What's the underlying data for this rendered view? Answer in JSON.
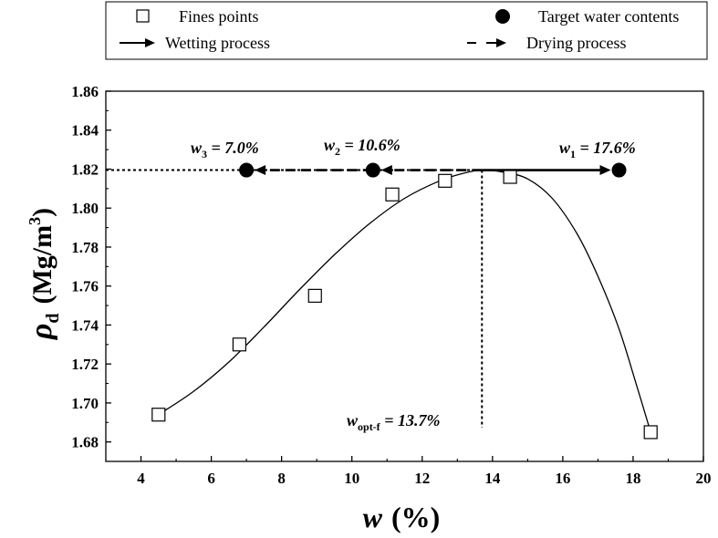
{
  "chart_data": {
    "type": "scatter",
    "x_range": [
      3,
      20
    ],
    "y_range": [
      1.67,
      1.86
    ],
    "x_ticks": [
      "4",
      "6",
      "8",
      "10",
      "12",
      "14",
      "16",
      "18",
      "20"
    ],
    "y_ticks": [
      "1.68",
      "1.70",
      "1.72",
      "1.74",
      "1.76",
      "1.78",
      "1.80",
      "1.82",
      "1.84",
      "1.86"
    ],
    "x_axis_title": {
      "symbol": "w",
      "unit": "(%)"
    },
    "y_axis_title": {
      "symbol": "ρ",
      "subscript": "d",
      "unit_prefix": "(Mg/m",
      "superscript": "3",
      "unit_suffix": ")"
    },
    "legend": {
      "fines_points": "Fines points",
      "target_water_contents": "Target water contents",
      "wetting_process": "Wetting process",
      "drying_process": "Drying process"
    },
    "fines_points": [
      {
        "x": 4.5,
        "y": 1.694
      },
      {
        "x": 6.8,
        "y": 1.73
      },
      {
        "x": 8.95,
        "y": 1.755
      },
      {
        "x": 11.15,
        "y": 1.807
      },
      {
        "x": 12.65,
        "y": 1.814
      },
      {
        "x": 14.5,
        "y": 1.816
      },
      {
        "x": 18.5,
        "y": 1.685
      }
    ],
    "fitted_curve": [
      {
        "x": 4.5,
        "y": 1.694
      },
      {
        "x": 5.5,
        "y": 1.706
      },
      {
        "x": 6.5,
        "y": 1.721
      },
      {
        "x": 7.5,
        "y": 1.739
      },
      {
        "x": 8.5,
        "y": 1.758
      },
      {
        "x": 9.5,
        "y": 1.776
      },
      {
        "x": 10.5,
        "y": 1.792
      },
      {
        "x": 11.5,
        "y": 1.805
      },
      {
        "x": 12.5,
        "y": 1.814
      },
      {
        "x": 13.2,
        "y": 1.818
      },
      {
        "x": 13.7,
        "y": 1.8195
      },
      {
        "x": 14.3,
        "y": 1.8185
      },
      {
        "x": 15.0,
        "y": 1.815
      },
      {
        "x": 15.7,
        "y": 1.805
      },
      {
        "x": 16.4,
        "y": 1.787
      },
      {
        "x": 17.0,
        "y": 1.765
      },
      {
        "x": 17.6,
        "y": 1.738
      },
      {
        "x": 18.1,
        "y": 1.709
      },
      {
        "x": 18.5,
        "y": 1.685
      }
    ],
    "target_points": [
      {
        "x": 7.0,
        "y": 1.8195,
        "label": {
          "w": "w",
          "sub": "3",
          "text": " = 7.0%"
        }
      },
      {
        "x": 10.6,
        "y": 1.8195,
        "label": {
          "w": "w",
          "sub": "2",
          "text": " = 10.6%"
        }
      },
      {
        "x": 17.6,
        "y": 1.8195,
        "label": {
          "w": "w",
          "sub": "1",
          "text": " = 17.6%"
        }
      }
    ],
    "optimum": {
      "x": 13.7,
      "y": 1.8195,
      "label": {
        "w": "w",
        "sub": "opt-f",
        "text": " = 13.7%"
      }
    },
    "wetting_arrow": {
      "from": 13.7,
      "to": 17.6,
      "y": 1.8195
    },
    "drying_arrows": [
      {
        "from": 13.7,
        "to": 10.6,
        "y": 1.8195
      },
      {
        "from": 10.6,
        "to": 7.0,
        "y": 1.8195
      }
    ]
  }
}
